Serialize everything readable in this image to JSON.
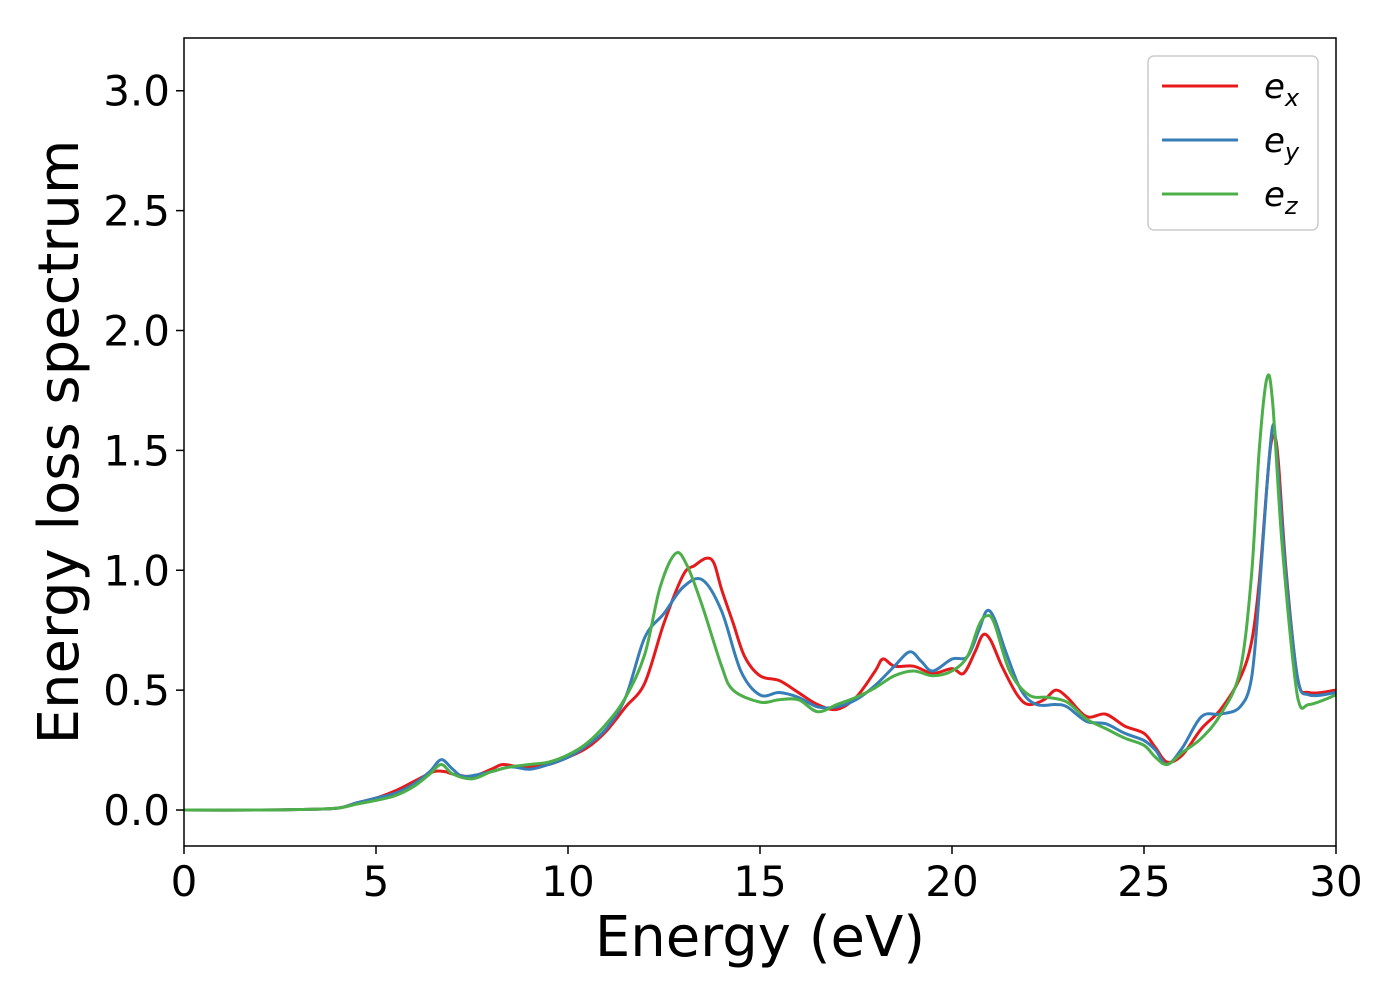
{
  "chart_data": {
    "type": "line",
    "title": "",
    "xlabel": "Energy (eV)",
    "ylabel": "Energy loss spectrum",
    "xlim": [
      0,
      30
    ],
    "ylim": [
      -0.15,
      3.22
    ],
    "x_ticks": [
      "0",
      "5",
      "10",
      "15",
      "20",
      "25",
      "30"
    ],
    "y_ticks": [
      "0.0",
      "0.5",
      "1.0",
      "1.5",
      "2.0",
      "2.5",
      "3.0"
    ],
    "grid": false,
    "legend_position": "top-right",
    "series": [
      {
        "name": "e_x",
        "legend_base": "e",
        "legend_sub": "x",
        "color": "#e41a1c",
        "points": [
          [
            0,
            0.0
          ],
          [
            2,
            0.0
          ],
          [
            3,
            0.002
          ],
          [
            4,
            0.008
          ],
          [
            4.5,
            0.03
          ],
          [
            5,
            0.05
          ],
          [
            5.5,
            0.08
          ],
          [
            6,
            0.12
          ],
          [
            6.5,
            0.16
          ],
          [
            6.8,
            0.16
          ],
          [
            7,
            0.15
          ],
          [
            7.5,
            0.14
          ],
          [
            8,
            0.17
          ],
          [
            8.3,
            0.19
          ],
          [
            8.7,
            0.18
          ],
          [
            9,
            0.18
          ],
          [
            9.5,
            0.19
          ],
          [
            10,
            0.22
          ],
          [
            10.5,
            0.26
          ],
          [
            11,
            0.33
          ],
          [
            11.5,
            0.43
          ],
          [
            12,
            0.53
          ],
          [
            12.5,
            0.78
          ],
          [
            13,
            0.98
          ],
          [
            13.3,
            1.02
          ],
          [
            13.6,
            1.05
          ],
          [
            13.8,
            1.03
          ],
          [
            14,
            0.92
          ],
          [
            14.3,
            0.78
          ],
          [
            14.6,
            0.64
          ],
          [
            15,
            0.56
          ],
          [
            15.5,
            0.54
          ],
          [
            16,
            0.49
          ],
          [
            16.5,
            0.44
          ],
          [
            17,
            0.42
          ],
          [
            17.5,
            0.47
          ],
          [
            18,
            0.58
          ],
          [
            18.2,
            0.63
          ],
          [
            18.5,
            0.6
          ],
          [
            19,
            0.6
          ],
          [
            19.5,
            0.57
          ],
          [
            20,
            0.59
          ],
          [
            20.3,
            0.57
          ],
          [
            20.6,
            0.66
          ],
          [
            20.8,
            0.73
          ],
          [
            21,
            0.71
          ],
          [
            21.3,
            0.6
          ],
          [
            21.7,
            0.48
          ],
          [
            22,
            0.44
          ],
          [
            22.4,
            0.46
          ],
          [
            22.7,
            0.5
          ],
          [
            23,
            0.47
          ],
          [
            23.5,
            0.39
          ],
          [
            24,
            0.4
          ],
          [
            24.5,
            0.35
          ],
          [
            25,
            0.32
          ],
          [
            25.3,
            0.26
          ],
          [
            25.6,
            0.2
          ],
          [
            26,
            0.23
          ],
          [
            26.5,
            0.34
          ],
          [
            27,
            0.42
          ],
          [
            27.5,
            0.55
          ],
          [
            27.8,
            0.7
          ],
          [
            28,
            0.95
          ],
          [
            28.2,
            1.35
          ],
          [
            28.3,
            1.52
          ],
          [
            28.4,
            1.56
          ],
          [
            28.5,
            1.45
          ],
          [
            28.7,
            1.0
          ],
          [
            29,
            0.55
          ],
          [
            29.3,
            0.49
          ],
          [
            30,
            0.5
          ]
        ]
      },
      {
        "name": "e_y",
        "legend_base": "e",
        "legend_sub": "y",
        "color": "#377eb8",
        "points": [
          [
            0,
            0.0
          ],
          [
            2,
            0.0
          ],
          [
            3,
            0.002
          ],
          [
            4,
            0.008
          ],
          [
            4.5,
            0.03
          ],
          [
            5,
            0.05
          ],
          [
            5.5,
            0.07
          ],
          [
            6,
            0.11
          ],
          [
            6.4,
            0.16
          ],
          [
            6.7,
            0.21
          ],
          [
            7,
            0.17
          ],
          [
            7.3,
            0.14
          ],
          [
            8,
            0.16
          ],
          [
            8.5,
            0.18
          ],
          [
            9,
            0.17
          ],
          [
            9.5,
            0.19
          ],
          [
            10,
            0.22
          ],
          [
            10.5,
            0.27
          ],
          [
            11,
            0.34
          ],
          [
            11.5,
            0.47
          ],
          [
            12,
            0.72
          ],
          [
            12.5,
            0.82
          ],
          [
            13,
            0.93
          ],
          [
            13.5,
            0.96
          ],
          [
            14,
            0.83
          ],
          [
            14.5,
            0.58
          ],
          [
            15,
            0.48
          ],
          [
            15.5,
            0.49
          ],
          [
            16,
            0.47
          ],
          [
            16.5,
            0.43
          ],
          [
            17,
            0.43
          ],
          [
            17.5,
            0.46
          ],
          [
            18,
            0.52
          ],
          [
            18.5,
            0.6
          ],
          [
            18.9,
            0.66
          ],
          [
            19.2,
            0.62
          ],
          [
            19.5,
            0.58
          ],
          [
            20,
            0.63
          ],
          [
            20.4,
            0.64
          ],
          [
            20.7,
            0.75
          ],
          [
            20.9,
            0.83
          ],
          [
            21.1,
            0.8
          ],
          [
            21.4,
            0.66
          ],
          [
            21.8,
            0.5
          ],
          [
            22.2,
            0.44
          ],
          [
            22.7,
            0.44
          ],
          [
            23,
            0.43
          ],
          [
            23.5,
            0.37
          ],
          [
            24,
            0.36
          ],
          [
            24.5,
            0.32
          ],
          [
            25,
            0.29
          ],
          [
            25.3,
            0.25
          ],
          [
            25.6,
            0.19
          ],
          [
            26,
            0.26
          ],
          [
            26.5,
            0.39
          ],
          [
            27,
            0.4
          ],
          [
            27.5,
            0.43
          ],
          [
            27.8,
            0.55
          ],
          [
            28,
            0.9
          ],
          [
            28.2,
            1.35
          ],
          [
            28.35,
            1.6
          ],
          [
            28.45,
            1.5
          ],
          [
            28.7,
            0.98
          ],
          [
            29,
            0.55
          ],
          [
            29.3,
            0.48
          ],
          [
            30,
            0.49
          ]
        ]
      },
      {
        "name": "e_z",
        "legend_base": "e",
        "legend_sub": "z",
        "color": "#4daf4a",
        "points": [
          [
            0,
            0.0
          ],
          [
            2,
            0.0
          ],
          [
            3,
            0.002
          ],
          [
            4,
            0.008
          ],
          [
            4.5,
            0.025
          ],
          [
            5,
            0.04
          ],
          [
            5.5,
            0.06
          ],
          [
            6,
            0.1
          ],
          [
            6.4,
            0.15
          ],
          [
            6.7,
            0.19
          ],
          [
            7,
            0.15
          ],
          [
            7.5,
            0.13
          ],
          [
            8,
            0.16
          ],
          [
            8.5,
            0.18
          ],
          [
            9,
            0.19
          ],
          [
            9.5,
            0.2
          ],
          [
            10,
            0.23
          ],
          [
            10.5,
            0.28
          ],
          [
            11,
            0.36
          ],
          [
            11.5,
            0.47
          ],
          [
            12,
            0.65
          ],
          [
            12.4,
            0.93
          ],
          [
            12.8,
            1.07
          ],
          [
            13.1,
            1.02
          ],
          [
            13.5,
            0.85
          ],
          [
            14,
            0.6
          ],
          [
            14.3,
            0.5
          ],
          [
            15,
            0.45
          ],
          [
            15.5,
            0.46
          ],
          [
            16,
            0.46
          ],
          [
            16.5,
            0.41
          ],
          [
            17,
            0.44
          ],
          [
            17.5,
            0.47
          ],
          [
            18,
            0.51
          ],
          [
            18.5,
            0.56
          ],
          [
            19,
            0.58
          ],
          [
            19.5,
            0.56
          ],
          [
            20,
            0.58
          ],
          [
            20.4,
            0.64
          ],
          [
            20.7,
            0.77
          ],
          [
            20.9,
            0.81
          ],
          [
            21.1,
            0.78
          ],
          [
            21.5,
            0.58
          ],
          [
            22,
            0.48
          ],
          [
            22.5,
            0.47
          ],
          [
            23,
            0.45
          ],
          [
            23.5,
            0.38
          ],
          [
            24,
            0.34
          ],
          [
            24.5,
            0.3
          ],
          [
            25,
            0.27
          ],
          [
            25.3,
            0.22
          ],
          [
            25.6,
            0.19
          ],
          [
            26,
            0.24
          ],
          [
            26.5,
            0.3
          ],
          [
            27,
            0.4
          ],
          [
            27.5,
            0.58
          ],
          [
            27.8,
            0.98
          ],
          [
            28,
            1.5
          ],
          [
            28.2,
            1.8
          ],
          [
            28.35,
            1.7
          ],
          [
            28.6,
            1.1
          ],
          [
            29,
            0.47
          ],
          [
            29.3,
            0.44
          ],
          [
            30,
            0.48
          ]
        ]
      }
    ]
  }
}
